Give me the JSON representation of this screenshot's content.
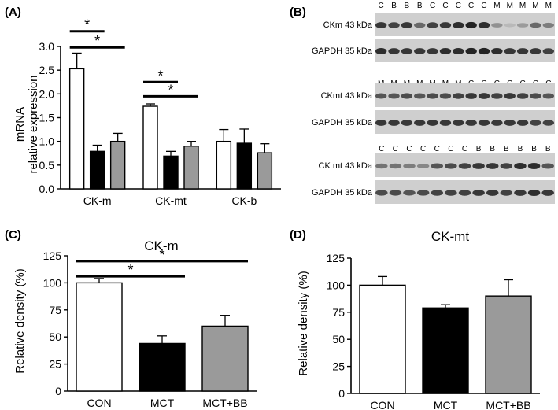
{
  "panels": {
    "A": "(A)",
    "B": "(B)",
    "C": "(C)",
    "D": "(D)"
  },
  "colors": {
    "CON": "#ffffff",
    "MCT": "#000000",
    "MCT+BB": "#9a9a9a"
  },
  "significance_mark": "*",
  "chart_data": [
    {
      "panel": "A",
      "type": "bar",
      "ylabel_lines": [
        "mRNA",
        "relative expression"
      ],
      "ylim": [
        0,
        3.0
      ],
      "yticks": [
        "0.0",
        "0.5",
        "1.0",
        "1.5",
        "2.0",
        "2.5",
        "3.0"
      ],
      "categories": [
        "CK-m",
        "CK-mt",
        "CK-b"
      ],
      "series": [
        {
          "values": [
            2.53,
            1.74,
            1.0
          ],
          "errors": [
            0.33,
            0.05,
            0.25
          ]
        },
        {
          "values": [
            0.79,
            0.69,
            0.96
          ],
          "errors": [
            0.13,
            0.1,
            0.3
          ]
        },
        {
          "values": [
            1.0,
            0.9,
            0.76
          ],
          "errors": [
            0.17,
            0.1,
            0.19
          ]
        }
      ],
      "significance": [
        {
          "category": 0,
          "from": 0,
          "to": 1,
          "y": 3.32
        },
        {
          "category": 0,
          "from": 0,
          "to": 2,
          "y": 2.98
        },
        {
          "category": 1,
          "from": 0,
          "to": 1,
          "y": 2.25
        },
        {
          "category": 1,
          "from": 0,
          "to": 2,
          "y": 1.95
        }
      ]
    },
    {
      "panel": "C",
      "type": "bar",
      "title": "CK-m",
      "ylabel": "Relative density (%)",
      "ylim": [
        0,
        125
      ],
      "yticks": [
        "0",
        "25",
        "50",
        "75",
        "100",
        "125"
      ],
      "categories": [
        "CON",
        "MCT",
        "MCT+BB"
      ],
      "values": [
        100,
        44,
        60
      ],
      "errors": [
        4,
        7,
        10
      ],
      "significance": [
        {
          "from": 0,
          "to": 2,
          "y": 120
        },
        {
          "from": 0,
          "to": 1,
          "y": 106
        }
      ]
    },
    {
      "panel": "D",
      "type": "bar",
      "title": "CK-mt",
      "ylabel": "Relative density (%)",
      "ylim": [
        0,
        125
      ],
      "yticks": [
        "0",
        "25",
        "50",
        "75",
        "100",
        "125"
      ],
      "categories": [
        "CON",
        "MCT",
        "MCT+BB"
      ],
      "values": [
        100,
        79,
        90
      ],
      "errors": [
        8,
        3,
        15
      ]
    }
  ],
  "blots": [
    {
      "lane_labels": [
        "C",
        "B",
        "B",
        "B",
        "C",
        "C",
        "C",
        "C",
        "C",
        "M",
        "M",
        "M",
        "M",
        "M"
      ],
      "bands": [
        {
          "label": "CKm 43 kDa",
          "intensities": [
            0.85,
            0.8,
            0.85,
            0.6,
            0.8,
            0.85,
            0.9,
            0.95,
            0.9,
            0.4,
            0.2,
            0.35,
            0.6,
            0.5
          ]
        },
        {
          "label": "GAPDH 35 kDa",
          "intensities": [
            0.9,
            0.85,
            0.85,
            0.85,
            0.85,
            0.9,
            0.9,
            0.95,
            0.95,
            0.9,
            0.85,
            0.85,
            0.85,
            0.8
          ]
        }
      ]
    },
    {
      "lane_labels": [
        "M",
        "M",
        "M",
        "M",
        "M",
        "M",
        "M",
        "C",
        "C",
        "C",
        "C",
        "C",
        "C",
        "C"
      ],
      "bands": [
        {
          "label": "CKmt 43 kDa",
          "intensities": [
            0.7,
            0.7,
            0.75,
            0.7,
            0.75,
            0.75,
            0.8,
            0.85,
            0.85,
            0.8,
            0.85,
            0.8,
            0.75,
            0.7
          ]
        },
        {
          "label": "GAPDH 35 kDa",
          "intensities": [
            0.85,
            0.85,
            0.85,
            0.85,
            0.85,
            0.85,
            0.85,
            0.85,
            0.85,
            0.85,
            0.85,
            0.85,
            0.8,
            0.8
          ]
        }
      ]
    },
    {
      "lane_labels": [
        "C",
        "C",
        "C",
        "C",
        "C",
        "C",
        "C",
        "B",
        "B",
        "B",
        "B",
        "B",
        "B"
      ],
      "bands": [
        {
          "label": "CK mt 43 kDa",
          "intensities": [
            0.55,
            0.55,
            0.5,
            0.45,
            0.7,
            0.75,
            0.8,
            0.85,
            0.85,
            0.8,
            0.9,
            0.9,
            0.7
          ]
        },
        {
          "label": "GAPDH 35 kDa",
          "intensities": [
            0.75,
            0.75,
            0.7,
            0.75,
            0.8,
            0.8,
            0.8,
            0.85,
            0.85,
            0.8,
            0.85,
            0.9,
            0.85
          ]
        }
      ]
    }
  ]
}
